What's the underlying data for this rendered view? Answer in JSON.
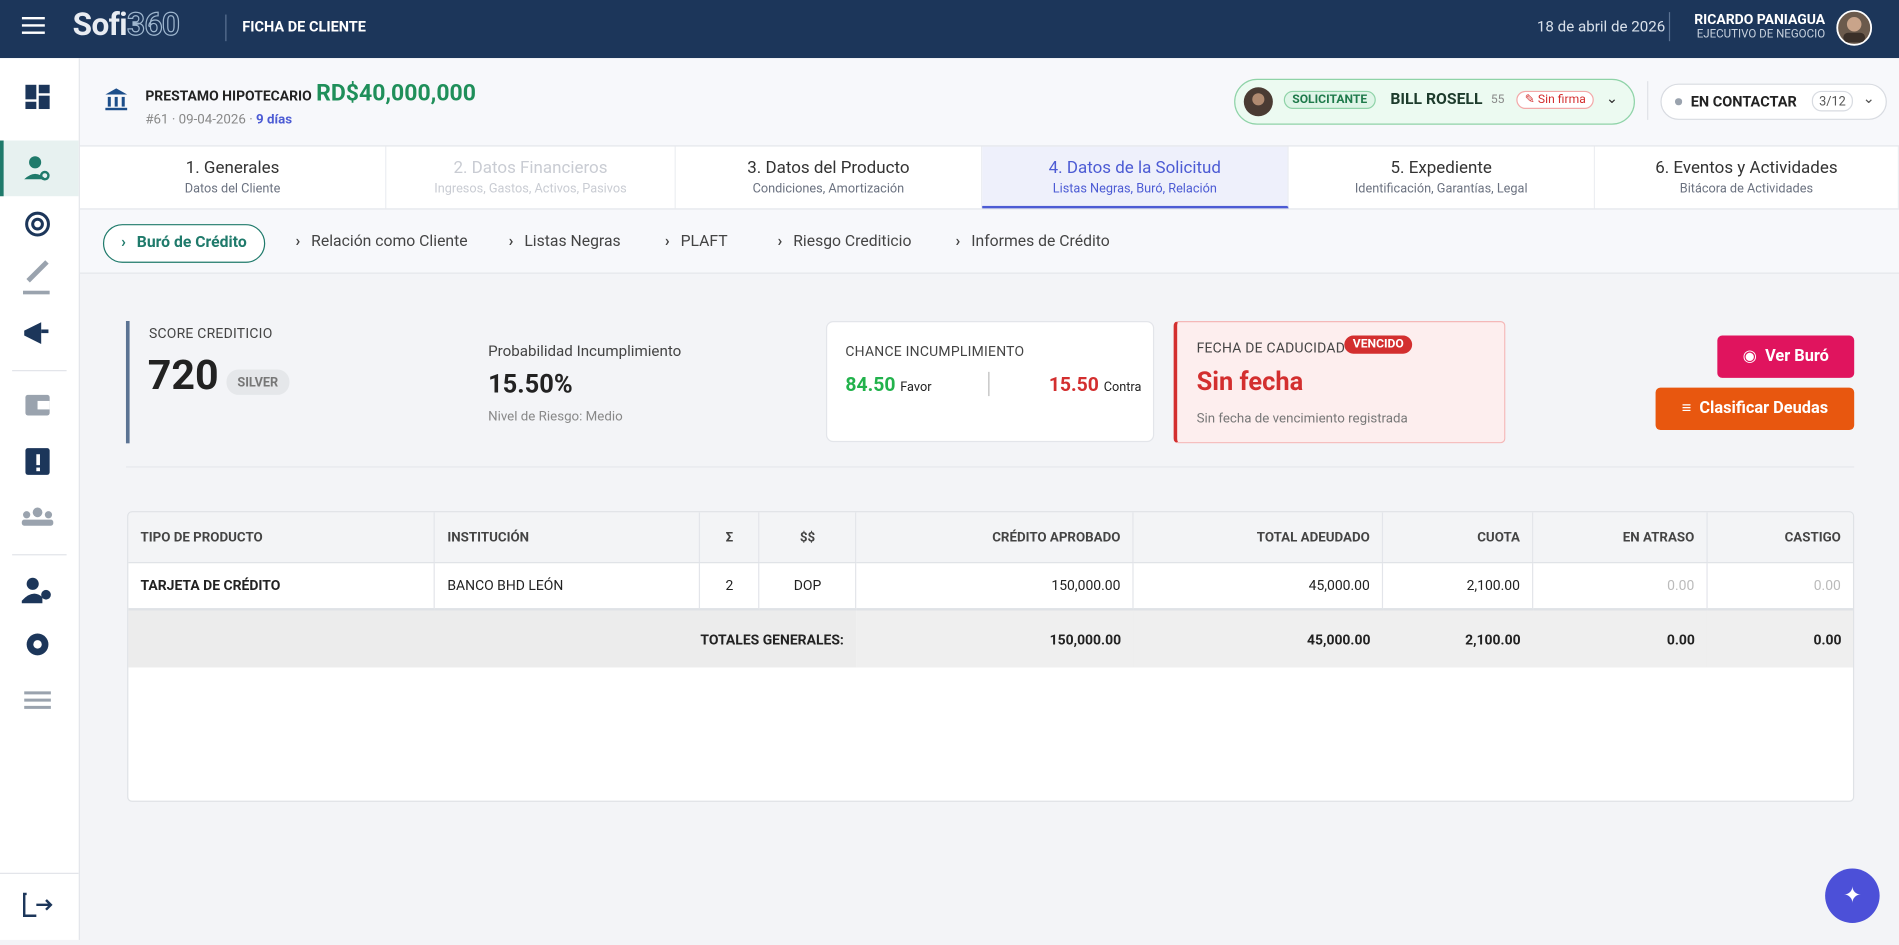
{
  "header": {
    "brand_a": "Sofi",
    "brand_b": "360",
    "section": "FICHA DE CLIENTE",
    "date": "18 de abril de 2026",
    "user_name": "RICARDO PANIAGUA",
    "user_role": "EJECUTIVO DE NEGOCIO"
  },
  "loan": {
    "product": "PRESTAMO HIPOTECARIO",
    "amount": "RD$40,000,000",
    "id": "#61",
    "date": "09-04-2026",
    "days": "9 días"
  },
  "applicant": {
    "role": "SOLICITANTE",
    "name": "BILL ROSELL",
    "age": "55",
    "signature": "Sin firma"
  },
  "status": {
    "label": "EN CONTACTAR",
    "step": "3/12"
  },
  "tabs": [
    {
      "title": "1. Generales",
      "subtitle": "Datos del Cliente"
    },
    {
      "title": "2. Datos Financieros",
      "subtitle": "Ingresos, Gastos, Activos, Pasivos"
    },
    {
      "title": "3. Datos del Producto",
      "subtitle": "Condiciones, Amortización"
    },
    {
      "title": "4. Datos de la Solicitud",
      "subtitle": "Listas Negras, Buró, Relación"
    },
    {
      "title": "5. Expediente",
      "subtitle": "Identificación, Garantías, Legal"
    },
    {
      "title": "6. Eventos y Actividades",
      "subtitle": "Bitácora de Actividades"
    }
  ],
  "subtabs": [
    "Buró de Crédito",
    "Relación como Cliente",
    "Listas Negras",
    "PLAFT",
    "Riesgo Crediticio",
    "Informes de Crédito"
  ],
  "score": {
    "label": "SCORE CREDITICIO",
    "value": "720",
    "tier": "SILVER"
  },
  "probability": {
    "label": "Probabilidad Incumplimiento",
    "value": "15.50%",
    "risk": "Nivel de Riesgo: Medio"
  },
  "chance": {
    "label": "CHANCE INCUMPLIMIENTO",
    "favor_value": "84.50",
    "favor_label": "Favor",
    "contra_value": "15.50",
    "contra_label": "Contra"
  },
  "expiry": {
    "label": "FECHA DE CADUCIDAD",
    "badge": "VENCIDO",
    "value": "Sin fecha",
    "note": "Sin fecha de vencimiento registrada"
  },
  "buttons": {
    "view": "Ver Buró",
    "classify": "Clasificar Deudas"
  },
  "table": {
    "columns": [
      "TIPO DE PRODUCTO",
      "INSTITUCIÓN",
      "Σ",
      "$$",
      "CRÉDITO APROBADO",
      "TOTAL ADEUDADO",
      "CUOTA",
      "EN ATRASO",
      "CASTIGO"
    ],
    "rows": [
      [
        "TARJETA DE CRÉDITO",
        "BANCO BHD LEÓN",
        "2",
        "DOP",
        "150,000.00",
        "45,000.00",
        "2,100.00",
        "0.00",
        "0.00"
      ]
    ],
    "totals_label": "TOTALES GENERALES:",
    "totals": [
      "150,000.00",
      "45,000.00",
      "2,100.00",
      "0.00",
      "0.00"
    ]
  }
}
